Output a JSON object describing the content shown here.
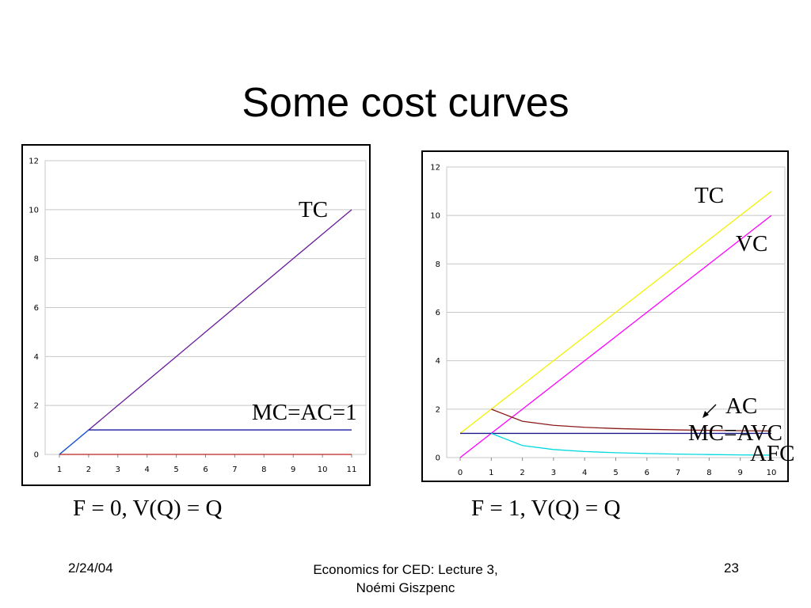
{
  "slide": {
    "title": "Some cost curves",
    "footer": {
      "date": "2/24/04",
      "center_line1": "Economics for CED: Lecture 3,",
      "center_line2": "Noémi Giszpenc",
      "page": "23"
    }
  },
  "chart_data": [
    {
      "type": "line",
      "title": "",
      "caption": "F = 0, V(Q) = Q",
      "xlabel": "",
      "ylabel": "",
      "x_ticks": [
        "1",
        "2",
        "3",
        "4",
        "5",
        "6",
        "7",
        "8",
        "9",
        "10",
        "11"
      ],
      "y_ticks": [
        "0",
        "2",
        "4",
        "6",
        "8",
        "10",
        "12"
      ],
      "ylim": [
        0,
        12
      ],
      "grid": true,
      "series": [
        {
          "name": "TC",
          "color": "#6a1b9a",
          "x": [
            "1",
            "2",
            "3",
            "4",
            "5",
            "6",
            "7",
            "8",
            "9",
            "10",
            "11"
          ],
          "values": [
            0,
            1,
            2,
            3,
            4,
            5,
            6,
            7,
            8,
            9,
            10
          ]
        },
        {
          "name": "MC=AC=1",
          "color": "#1a1aa0",
          "x": [
            "2",
            "3",
            "4",
            "5",
            "6",
            "7",
            "8",
            "9",
            "10",
            "11"
          ],
          "values": [
            1,
            1,
            1,
            1,
            1,
            1,
            1,
            1,
            1,
            1
          ]
        },
        {
          "color": "#1a5fd6",
          "x": [
            "1",
            "2"
          ],
          "values": [
            0,
            1
          ]
        },
        {
          "color": "#c02020",
          "x": [
            "1",
            "2",
            "3",
            "4",
            "5",
            "6",
            "7",
            "8",
            "9",
            "10",
            "11"
          ],
          "values": [
            0,
            0,
            0,
            0,
            0,
            0,
            0,
            0,
            0,
            0,
            0
          ]
        }
      ],
      "labels": {
        "tc": "TC",
        "mc_ac": "MC=AC=1"
      }
    },
    {
      "type": "line",
      "title": "",
      "caption": "F = 1, V(Q) = Q",
      "xlabel": "",
      "ylabel": "",
      "x_ticks": [
        "0",
        "1",
        "2",
        "3",
        "4",
        "5",
        "6",
        "7",
        "8",
        "9",
        "10"
      ],
      "y_ticks": [
        "0",
        "2",
        "4",
        "6",
        "8",
        "10",
        "12"
      ],
      "ylim": [
        0,
        12
      ],
      "grid": true,
      "series": [
        {
          "name": "TC",
          "color": "#f2f200",
          "x": [
            "0",
            "1",
            "2",
            "3",
            "4",
            "5",
            "6",
            "7",
            "8",
            "9",
            "10"
          ],
          "values": [
            1,
            2,
            3,
            4,
            5,
            6,
            7,
            8,
            9,
            10,
            11
          ]
        },
        {
          "name": "VC",
          "color": "#ff00ff",
          "x": [
            "0",
            "1",
            "2",
            "3",
            "4",
            "5",
            "6",
            "7",
            "8",
            "9",
            "10"
          ],
          "values": [
            0,
            1,
            2,
            3,
            4,
            5,
            6,
            7,
            8,
            9,
            10
          ]
        },
        {
          "name": "AC",
          "color": "#8b1a1a",
          "x": [
            "1",
            "2",
            "3",
            "4",
            "5",
            "6",
            "7",
            "8",
            "9",
            "10"
          ],
          "values": [
            2,
            1.5,
            1.333,
            1.25,
            1.2,
            1.167,
            1.143,
            1.125,
            1.111,
            1.1
          ]
        },
        {
          "name": "MC=AVC",
          "color": "#1a1a8c",
          "x": [
            "0",
            "1",
            "2",
            "3",
            "4",
            "5",
            "6",
            "7",
            "8",
            "9",
            "10"
          ],
          "values": [
            1,
            1,
            1,
            1,
            1,
            1,
            1,
            1,
            1,
            1,
            1
          ]
        },
        {
          "name": "AFC",
          "color": "#00d8e0",
          "x": [
            "1",
            "2",
            "3",
            "4",
            "5",
            "6",
            "7",
            "8",
            "9",
            "10"
          ],
          "values": [
            1,
            0.5,
            0.333,
            0.25,
            0.2,
            0.167,
            0.143,
            0.125,
            0.111,
            0.1
          ]
        }
      ],
      "labels": {
        "tc": "TC",
        "vc": "VC",
        "ac": "AC",
        "mc_avc": "MC=AVC",
        "afc": "AFC"
      }
    }
  ]
}
